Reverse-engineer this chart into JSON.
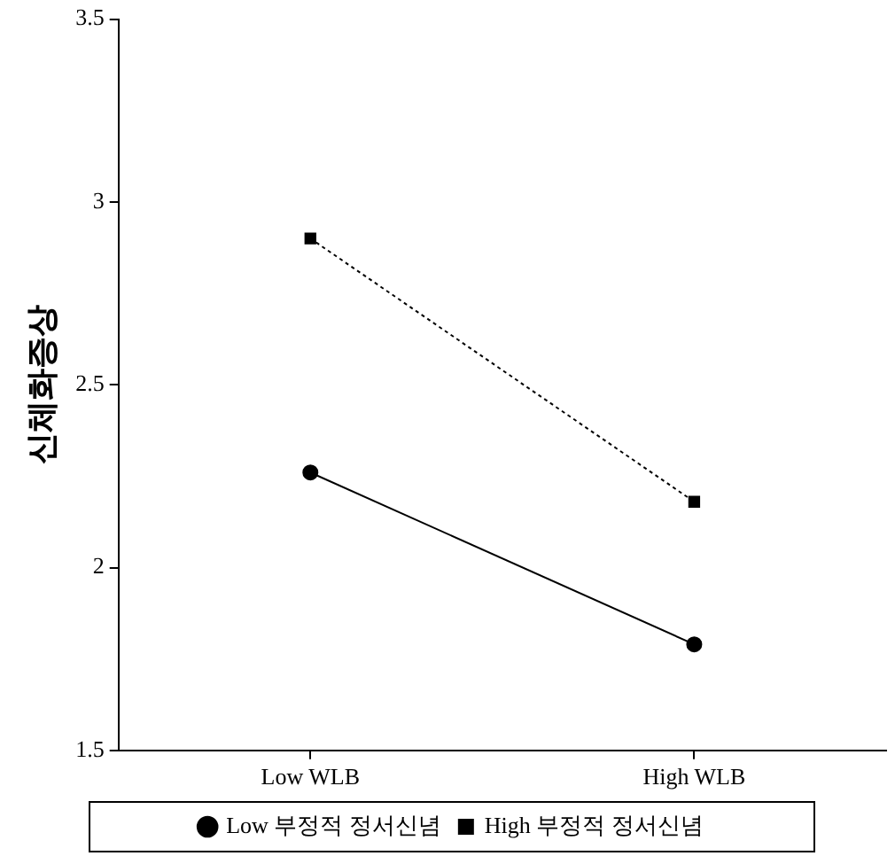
{
  "chart_data": {
    "type": "line",
    "ylabel": "신체화증상",
    "categories": [
      "Low WLB",
      "High WLB"
    ],
    "series": [
      {
        "name": "Low 부정적 정서신념",
        "color": "#000000",
        "values": [
          2.26,
          1.79
        ],
        "marker": "circle",
        "line_style": "solid"
      },
      {
        "name": "High 부정적 정서신념",
        "color": "#000000",
        "values": [
          2.9,
          2.18
        ],
        "marker": "square",
        "line_style": "dotted"
      }
    ],
    "ylim": [
      1.5,
      3.5
    ],
    "yticks": [
      1.5,
      2,
      2.5,
      3,
      3.5
    ],
    "grid": false,
    "legend": "bottom"
  }
}
